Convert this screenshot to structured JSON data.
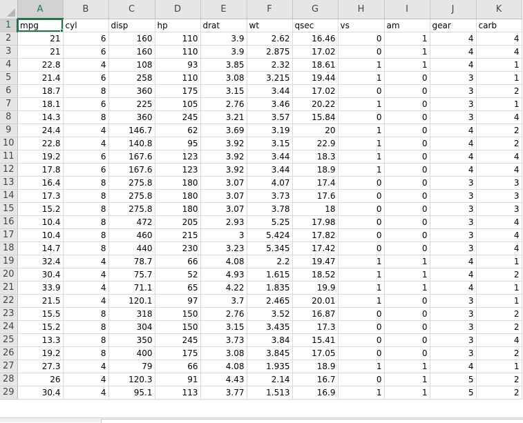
{
  "sheet": {
    "columns": [
      "A",
      "B",
      "C",
      "D",
      "E",
      "F",
      "G",
      "H",
      "I",
      "J",
      "K"
    ],
    "selected_cell": "A1",
    "header_row": [
      "mpg",
      "cyl",
      "disp",
      "hp",
      "drat",
      "wt",
      "qsec",
      "vs",
      "am",
      "gear",
      "carb"
    ],
    "rows": [
      [
        "21",
        "6",
        "160",
        "110",
        "3.9",
        "2.62",
        "16.46",
        "0",
        "1",
        "4",
        "4"
      ],
      [
        "21",
        "6",
        "160",
        "110",
        "3.9",
        "2.875",
        "17.02",
        "0",
        "1",
        "4",
        "4"
      ],
      [
        "22.8",
        "4",
        "108",
        "93",
        "3.85",
        "2.32",
        "18.61",
        "1",
        "1",
        "4",
        "1"
      ],
      [
        "21.4",
        "6",
        "258",
        "110",
        "3.08",
        "3.215",
        "19.44",
        "1",
        "0",
        "3",
        "1"
      ],
      [
        "18.7",
        "8",
        "360",
        "175",
        "3.15",
        "3.44",
        "17.02",
        "0",
        "0",
        "3",
        "2"
      ],
      [
        "18.1",
        "6",
        "225",
        "105",
        "2.76",
        "3.46",
        "20.22",
        "1",
        "0",
        "3",
        "1"
      ],
      [
        "14.3",
        "8",
        "360",
        "245",
        "3.21",
        "3.57",
        "15.84",
        "0",
        "0",
        "3",
        "4"
      ],
      [
        "24.4",
        "4",
        "146.7",
        "62",
        "3.69",
        "3.19",
        "20",
        "1",
        "0",
        "4",
        "2"
      ],
      [
        "22.8",
        "4",
        "140.8",
        "95",
        "3.92",
        "3.15",
        "22.9",
        "1",
        "0",
        "4",
        "2"
      ],
      [
        "19.2",
        "6",
        "167.6",
        "123",
        "3.92",
        "3.44",
        "18.3",
        "1",
        "0",
        "4",
        "4"
      ],
      [
        "17.8",
        "6",
        "167.6",
        "123",
        "3.92",
        "3.44",
        "18.9",
        "1",
        "0",
        "4",
        "4"
      ],
      [
        "16.4",
        "8",
        "275.8",
        "180",
        "3.07",
        "4.07",
        "17.4",
        "0",
        "0",
        "3",
        "3"
      ],
      [
        "17.3",
        "8",
        "275.8",
        "180",
        "3.07",
        "3.73",
        "17.6",
        "0",
        "0",
        "3",
        "3"
      ],
      [
        "15.2",
        "8",
        "275.8",
        "180",
        "3.07",
        "3.78",
        "18",
        "0",
        "0",
        "3",
        "3"
      ],
      [
        "10.4",
        "8",
        "472",
        "205",
        "2.93",
        "5.25",
        "17.98",
        "0",
        "0",
        "3",
        "4"
      ],
      [
        "10.4",
        "8",
        "460",
        "215",
        "3",
        "5.424",
        "17.82",
        "0",
        "0",
        "3",
        "4"
      ],
      [
        "14.7",
        "8",
        "440",
        "230",
        "3.23",
        "5.345",
        "17.42",
        "0",
        "0",
        "3",
        "4"
      ],
      [
        "32.4",
        "4",
        "78.7",
        "66",
        "4.08",
        "2.2",
        "19.47",
        "1",
        "1",
        "4",
        "1"
      ],
      [
        "30.4",
        "4",
        "75.7",
        "52",
        "4.93",
        "1.615",
        "18.52",
        "1",
        "1",
        "4",
        "2"
      ],
      [
        "33.9",
        "4",
        "71.1",
        "65",
        "4.22",
        "1.835",
        "19.9",
        "1",
        "1",
        "4",
        "1"
      ],
      [
        "21.5",
        "4",
        "120.1",
        "97",
        "3.7",
        "2.465",
        "20.01",
        "1",
        "0",
        "3",
        "1"
      ],
      [
        "15.5",
        "8",
        "318",
        "150",
        "2.76",
        "3.52",
        "16.87",
        "0",
        "0",
        "3",
        "2"
      ],
      [
        "15.2",
        "8",
        "304",
        "150",
        "3.15",
        "3.435",
        "17.3",
        "0",
        "0",
        "3",
        "2"
      ],
      [
        "13.3",
        "8",
        "350",
        "245",
        "3.73",
        "3.84",
        "15.41",
        "0",
        "0",
        "3",
        "4"
      ],
      [
        "19.2",
        "8",
        "400",
        "175",
        "3.08",
        "3.845",
        "17.05",
        "0",
        "0",
        "3",
        "2"
      ],
      [
        "27.3",
        "4",
        "79",
        "66",
        "4.08",
        "1.935",
        "18.9",
        "1",
        "1",
        "4",
        "1"
      ],
      [
        "26",
        "4",
        "120.3",
        "91",
        "4.43",
        "2.14",
        "16.7",
        "0",
        "1",
        "5",
        "2"
      ],
      [
        "30.4",
        "4",
        "95.1",
        "113",
        "3.77",
        "1.513",
        "16.9",
        "1",
        "1",
        "5",
        "2"
      ]
    ]
  },
  "colors": {
    "accent": "#217346",
    "header_bg": "#e6e6e6",
    "gridline": "#dadada"
  }
}
